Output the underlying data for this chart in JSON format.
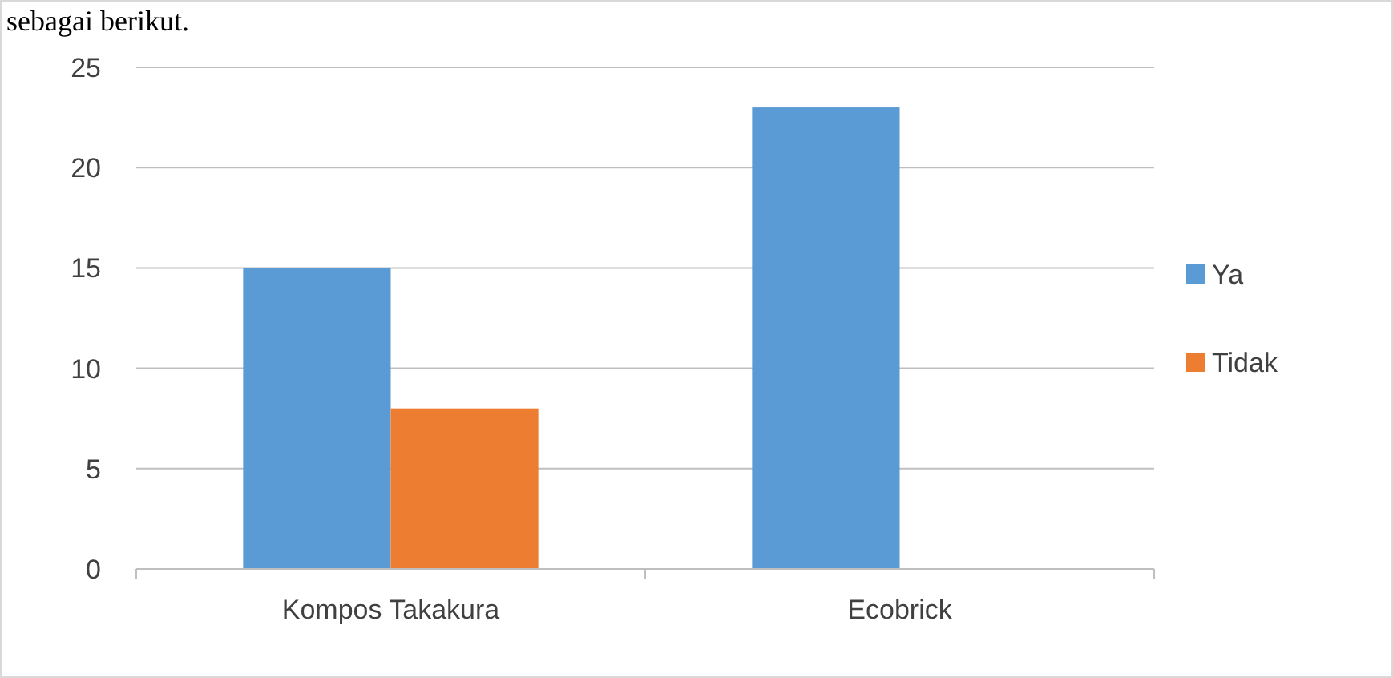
{
  "chart_data": {
    "type": "bar",
    "categories": [
      "Kompos Takakura",
      "Ecobrick"
    ],
    "series": [
      {
        "name": "Ya",
        "color": "#5b9bd5",
        "values": [
          15,
          23
        ]
      },
      {
        "name": "Tidak",
        "color": "#ed7d31",
        "values": [
          8,
          0
        ]
      }
    ],
    "ylim": [
      0,
      25
    ],
    "yticks": [
      0,
      5,
      10,
      15,
      20,
      25
    ],
    "grid": "y",
    "legend": "right",
    "annotations": [
      "sebagai berikut."
    ]
  }
}
